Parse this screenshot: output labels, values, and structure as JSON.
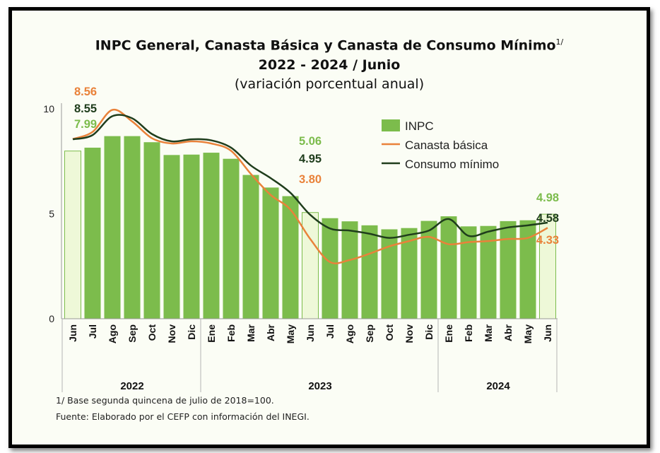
{
  "title": "INPC General, Canasta Básica  y Canasta de Consumo Mínimo",
  "title_sup": "1/",
  "subtitle": "2022 - 2024 / Junio",
  "subtitle2": "(variación porcentual anual)",
  "note1": "1/ Base segunda quincena de julio de 2018=100.",
  "note2": "Fuente: Elaborado por el CEFP con información del INEGI.",
  "colors": {
    "inpc": "#7cbc4c",
    "inpc_highlight": "#eef8d8",
    "canasta": "#e9823a",
    "consumo": "#1f3d1c",
    "label_inpc": "#7cbc4c",
    "label_canasta": "#e9823a",
    "label_consumo": "#1f3d1c"
  },
  "chart_data": {
    "type": "bar",
    "categories": [
      "Jun",
      "Jul",
      "Ago",
      "Sep",
      "Oct",
      "Nov",
      "Dic",
      "Ene",
      "Feb",
      "Mar",
      "Abr",
      "May",
      "Jun",
      "Jul",
      "Ago",
      "Sep",
      "Oct",
      "Nov",
      "Dic",
      "Ene",
      "Feb",
      "Mar",
      "Abr",
      "May",
      "Jun"
    ],
    "years": [
      {
        "label": "2022",
        "from": 0,
        "to": 6
      },
      {
        "label": "2023",
        "from": 7,
        "to": 18
      },
      {
        "label": "2024",
        "from": 19,
        "to": 24
      }
    ],
    "highlight_indices": [
      0,
      12,
      24
    ],
    "ylim": [
      0,
      10
    ],
    "yticks": [
      0,
      5,
      10
    ],
    "series": [
      {
        "name": "INPC",
        "kind": "bar",
        "values": [
          7.99,
          8.15,
          8.7,
          8.7,
          8.41,
          7.8,
          7.82,
          7.91,
          7.62,
          6.85,
          6.25,
          5.84,
          5.06,
          4.79,
          4.64,
          4.45,
          4.26,
          4.32,
          4.66,
          4.88,
          4.4,
          4.42,
          4.65,
          4.69,
          4.98
        ]
      },
      {
        "name": "Canasta básica",
        "kind": "line",
        "values": [
          8.56,
          8.9,
          9.95,
          9.4,
          8.6,
          8.35,
          8.45,
          8.35,
          8.0,
          6.9,
          5.9,
          5.2,
          3.8,
          2.7,
          2.8,
          3.1,
          3.45,
          3.7,
          3.9,
          3.55,
          3.65,
          3.7,
          3.8,
          3.85,
          4.33
        ]
      },
      {
        "name": "Consumo mínimo",
        "kind": "line",
        "values": [
          8.55,
          8.75,
          9.65,
          9.55,
          8.8,
          8.45,
          8.55,
          8.5,
          8.15,
          7.3,
          6.7,
          6.0,
          4.95,
          4.3,
          4.2,
          4.05,
          3.85,
          4.0,
          4.2,
          4.75,
          3.95,
          4.15,
          4.35,
          4.45,
          4.58
        ]
      }
    ],
    "annotations": [
      {
        "text": "8.56",
        "series": "canasta",
        "index": 0
      },
      {
        "text": "8.55",
        "series": "consumo",
        "index": 0
      },
      {
        "text": "7.99",
        "series": "inpc",
        "index": 0
      },
      {
        "text": "5.06",
        "series": "inpc",
        "index": 12
      },
      {
        "text": "4.95",
        "series": "consumo",
        "index": 12
      },
      {
        "text": "3.80",
        "series": "canasta",
        "index": 12
      },
      {
        "text": "4.98",
        "series": "inpc",
        "index": 24
      },
      {
        "text": "4.58",
        "series": "consumo",
        "index": 24
      },
      {
        "text": "4.33",
        "series": "canasta",
        "index": 24
      }
    ],
    "legend": [
      "INPC",
      "Canasta básica",
      "Consumo mínimo"
    ],
    "legend_position": "top-right",
    "grid": false
  }
}
